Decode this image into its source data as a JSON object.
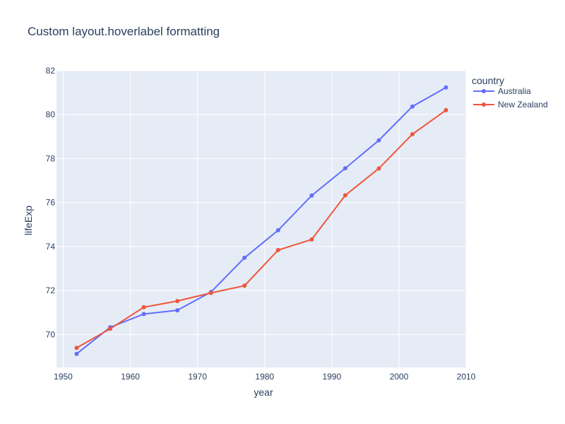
{
  "chart_data": {
    "type": "line",
    "title": "Custom layout.hoverlabel formatting",
    "xlabel": "year",
    "ylabel": "lifeExp",
    "xlim": [
      1949,
      2010
    ],
    "ylim": [
      68.5,
      82
    ],
    "xticks": [
      1950,
      1960,
      1970,
      1980,
      1990,
      2000,
      2010
    ],
    "yticks": [
      70,
      72,
      74,
      76,
      78,
      80,
      82
    ],
    "grid": true,
    "legend_title": "country",
    "legend_position": "top-right",
    "x": [
      1952,
      1957,
      1962,
      1967,
      1972,
      1977,
      1982,
      1987,
      1992,
      1997,
      2002,
      2007
    ],
    "series": [
      {
        "name": "Australia",
        "color": "#636efa",
        "values": [
          69.12,
          70.33,
          70.93,
          71.1,
          71.93,
          73.49,
          74.74,
          76.32,
          77.56,
          78.83,
          80.37,
          81.235
        ]
      },
      {
        "name": "New Zealand",
        "color": "#ef553b",
        "values": [
          69.39,
          70.26,
          71.24,
          71.52,
          71.89,
          72.22,
          73.84,
          74.32,
          76.33,
          77.55,
          79.11,
          80.204
        ]
      }
    ],
    "plot_background": "#e5ecf6",
    "text_color": "#2a3f5f"
  }
}
